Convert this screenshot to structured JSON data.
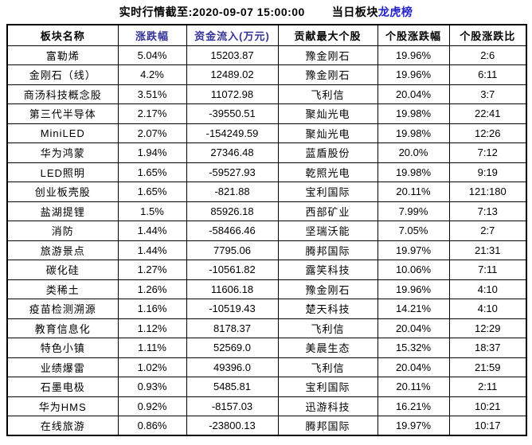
{
  "title": {
    "timestamp": "实时行情截至:2020-09-07 15:00:00",
    "board_label": "当日板块",
    "link_label": "龙虎榜"
  },
  "colors": {
    "sector_name_blue": "#1466b8",
    "link_blue": "#2222cc",
    "header_navy": "#333399",
    "grid_border": "#000000",
    "background": "#ffffff"
  },
  "table": {
    "headers": [
      "板块名称",
      "涨跌幅",
      "资金流入(万元)",
      "贡献最大个股",
      "个股涨跌幅",
      "个股涨跌比"
    ],
    "rows": [
      {
        "sector": "富勒烯",
        "change": "5.04%",
        "inflow": "15203.87",
        "stock": "豫金刚石",
        "stock_change": "19.96%",
        "ratio": "2:6"
      },
      {
        "sector": "金刚石（线）",
        "change": "4.2%",
        "inflow": "12489.02",
        "stock": "豫金刚石",
        "stock_change": "19.96%",
        "ratio": "6:11"
      },
      {
        "sector": "商汤科技概念股",
        "change": "3.51%",
        "inflow": "11072.98",
        "stock": "飞利信",
        "stock_change": "20.04%",
        "ratio": "3:7"
      },
      {
        "sector": "第三代半导体",
        "change": "2.17%",
        "inflow": "-39550.51",
        "stock": "聚灿光电",
        "stock_change": "19.98%",
        "ratio": "22:41"
      },
      {
        "sector": "MiniLED",
        "change": "2.07%",
        "inflow": "-154249.59",
        "stock": "聚灿光电",
        "stock_change": "19.98%",
        "ratio": "12:26"
      },
      {
        "sector": "华为鸿蒙",
        "change": "1.94%",
        "inflow": "27346.48",
        "stock": "蓝盾股份",
        "stock_change": "20.0%",
        "ratio": "7:12"
      },
      {
        "sector": "LED照明",
        "change": "1.65%",
        "inflow": "-59527.93",
        "stock": "乾照光电",
        "stock_change": "19.98%",
        "ratio": "9:19"
      },
      {
        "sector": "创业板壳股",
        "change": "1.65%",
        "inflow": "-821.88",
        "stock": "宝利国际",
        "stock_change": "20.11%",
        "ratio": "121:180"
      },
      {
        "sector": "盐湖提锂",
        "change": "1.5%",
        "inflow": "85926.18",
        "stock": "西部矿业",
        "stock_change": "7.99%",
        "ratio": "7:13"
      },
      {
        "sector": "消防",
        "change": "1.44%",
        "inflow": "-58466.46",
        "stock": "坚瑞沃能",
        "stock_change": "7.05%",
        "ratio": "2:7"
      },
      {
        "sector": "旅游景点",
        "change": "1.44%",
        "inflow": "7795.06",
        "stock": "腾邦国际",
        "stock_change": "19.97%",
        "ratio": "21:31"
      },
      {
        "sector": "碳化硅",
        "change": "1.27%",
        "inflow": "-10561.82",
        "stock": "露笑科技",
        "stock_change": "10.06%",
        "ratio": "7:11"
      },
      {
        "sector": "类稀土",
        "change": "1.26%",
        "inflow": "11606.18",
        "stock": "豫金刚石",
        "stock_change": "19.96%",
        "ratio": "4:10"
      },
      {
        "sector": "疫苗检测溯源",
        "change": "1.16%",
        "inflow": "-10519.43",
        "stock": "楚天科技",
        "stock_change": "14.21%",
        "ratio": "4:10"
      },
      {
        "sector": "教育信息化",
        "change": "1.12%",
        "inflow": "8178.37",
        "stock": "飞利信",
        "stock_change": "20.04%",
        "ratio": "12:29"
      },
      {
        "sector": "特色小镇",
        "change": "1.11%",
        "inflow": "52569.0",
        "stock": "美晨生态",
        "stock_change": "15.32%",
        "ratio": "18:37"
      },
      {
        "sector": "业绩爆雷",
        "change": "1.02%",
        "inflow": "49396.0",
        "stock": "飞利信",
        "stock_change": "20.04%",
        "ratio": "21:59"
      },
      {
        "sector": "石墨电极",
        "change": "0.93%",
        "inflow": "5485.81",
        "stock": "宝利国际",
        "stock_change": "20.11%",
        "ratio": "2:11"
      },
      {
        "sector": "华为HMS",
        "change": "0.92%",
        "inflow": "-8157.03",
        "stock": "迅游科技",
        "stock_change": "16.21%",
        "ratio": "10:21"
      },
      {
        "sector": "在线旅游",
        "change": "0.86%",
        "inflow": "-23800.13",
        "stock": "腾邦国际",
        "stock_change": "19.97%",
        "ratio": "10:17"
      }
    ]
  }
}
